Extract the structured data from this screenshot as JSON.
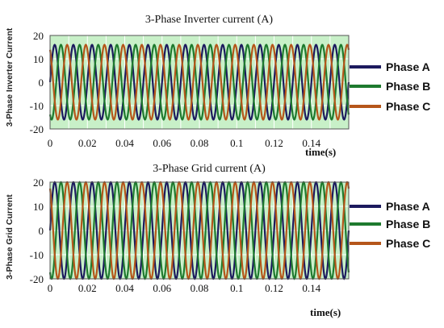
{
  "chart_data": [
    {
      "type": "line",
      "title": "3-Phase Inverter current (A)",
      "ylabel": "3-Phase Inverter Current",
      "xlabel": "time(s)",
      "xlim": [
        0,
        0.16
      ],
      "ylim": [
        -20,
        20
      ],
      "xticks": [
        0,
        0.02,
        0.04,
        0.06,
        0.08,
        0.1,
        0.12,
        0.14
      ],
      "xtick_labels": [
        "0",
        "0.02",
        "0.04",
        "0.06",
        "0.08",
        "0.1",
        "0.12",
        "0.14"
      ],
      "yticks": [
        -20,
        -10,
        0,
        10,
        20
      ],
      "ytick_labels": [
        "-20",
        "-10",
        "0",
        "10",
        "20"
      ],
      "grid": true,
      "legend_position": "right",
      "waveform": {
        "amplitude": 16,
        "frequency_hz": 100
      },
      "series": [
        {
          "name": "Phase A",
          "color": "#1c1a5e",
          "phase_deg": 0
        },
        {
          "name": "Phase B",
          "color": "#1e7a2e",
          "phase_deg": -120
        },
        {
          "name": "Phase C",
          "color": "#b5561a",
          "phase_deg": 120
        }
      ]
    },
    {
      "type": "line",
      "title": "3-Phase Grid current (A)",
      "ylabel": "3-Phase Grid Current",
      "xlabel": "time(s)",
      "xlim": [
        0,
        0.16
      ],
      "ylim": [
        -20,
        20
      ],
      "xticks": [
        0,
        0.02,
        0.04,
        0.06,
        0.08,
        0.1,
        0.12,
        0.14
      ],
      "xtick_labels": [
        "0",
        "0.02",
        "0.04",
        "0.06",
        "0.08",
        "0.1",
        "0.12",
        "0.14"
      ],
      "yticks": [
        -20,
        -10,
        0,
        10,
        20
      ],
      "ytick_labels": [
        "-20",
        "-10",
        "0",
        "10",
        "20"
      ],
      "grid": true,
      "legend_position": "right",
      "waveform": {
        "amplitude": 20,
        "frequency_hz": 100
      },
      "series": [
        {
          "name": "Phase A",
          "color": "#1c1a5e",
          "phase_deg": 0
        },
        {
          "name": "Phase B",
          "color": "#1e7a2e",
          "phase_deg": -120
        },
        {
          "name": "Phase C",
          "color": "#b5561a",
          "phase_deg": 120
        }
      ]
    }
  ],
  "colors": {
    "plot_background": "#c8f0c8",
    "grid": "#ffffff"
  }
}
